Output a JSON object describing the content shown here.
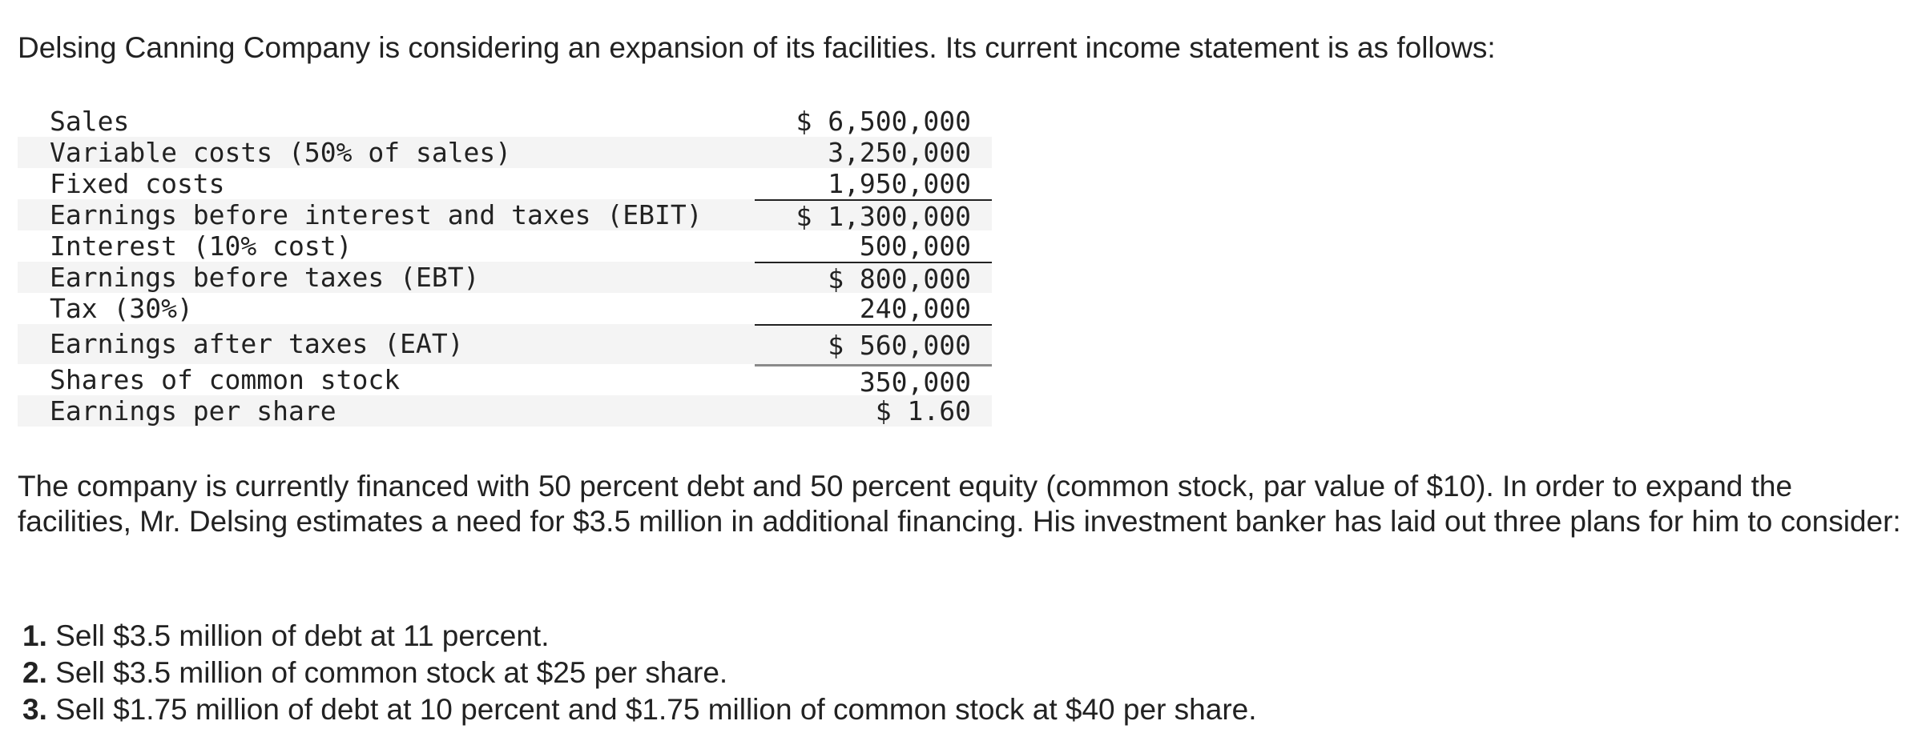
{
  "intro": "Delsing Canning Company is considering an expansion of its facilities. Its current income statement is as follows:",
  "income_statement": [
    {
      "label": "Sales",
      "amount": "$ 6,500,000"
    },
    {
      "label": "Variable costs (50% of sales)",
      "amount": "3,250,000"
    },
    {
      "label": "Fixed costs",
      "amount": "1,950,000"
    },
    {
      "label": "Earnings before interest and taxes (EBIT)",
      "amount": "$ 1,300,000"
    },
    {
      "label": "Interest (10% cost)",
      "amount": "500,000"
    },
    {
      "label": "Earnings before taxes (EBT)",
      "amount": "$ 800,000"
    },
    {
      "label": "Tax (30%)",
      "amount": "240,000"
    },
    {
      "label": "Earnings after taxes (EAT)",
      "amount": "$ 560,000"
    },
    {
      "label": "Shares of common stock",
      "amount": "350,000"
    },
    {
      "label": "Earnings per share",
      "amount": "$ 1.60"
    }
  ],
  "body": "The company is currently financed with 50 percent debt and 50 percent equity (common stock, par value of $10). In order to expand the facilities, Mr. Delsing estimates a need for $3.5 million in additional financing. His investment banker has laid out three plans for him to consider:",
  "plans": [
    {
      "number": "1.",
      "text": "Sell $3.5 million of debt at 11 percent."
    },
    {
      "number": "2.",
      "text": "Sell $3.5 million of common stock at $25 per share."
    },
    {
      "number": "3.",
      "text": "Sell $1.75 million of debt at 10 percent and $1.75 million of common stock at $40 per share."
    }
  ]
}
